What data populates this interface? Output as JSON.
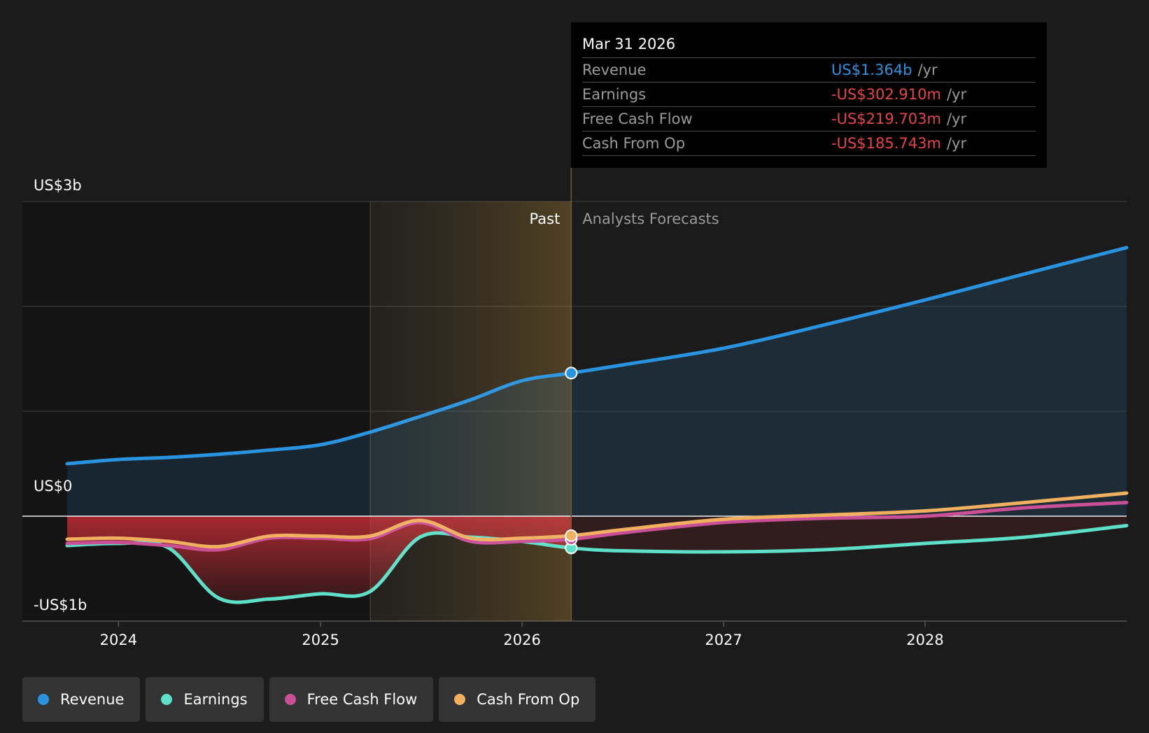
{
  "chart_data": {
    "type": "area",
    "x_label": "",
    "y_label": "",
    "ylim": [
      -1000000000,
      3000000000
    ],
    "xlim": [
      "2023-09-30",
      "2028-12-31"
    ],
    "y_ticks": [
      {
        "value": 3000000000,
        "label": "US$3b"
      },
      {
        "value": 0,
        "label": "US$0"
      },
      {
        "value": -1000000000,
        "label": "-US$1b"
      }
    ],
    "x_ticks": [
      {
        "date": "2024-01-01",
        "label": "2024"
      },
      {
        "date": "2025-01-01",
        "label": "2025"
      },
      {
        "date": "2026-01-01",
        "label": "2026"
      },
      {
        "date": "2027-01-01",
        "label": "2027"
      },
      {
        "date": "2028-01-01",
        "label": "2028"
      }
    ],
    "past_label": "Past",
    "forecast_label": "Analysts Forecasts",
    "divider_date": "2026-03-31",
    "highlight_start_date": "2025-04-01",
    "legend_position": "bottom",
    "series": [
      {
        "name": "Revenue",
        "color": "#2a93e0",
        "points": [
          [
            "2023-09-30",
            500000000
          ],
          [
            "2023-12-31",
            540000000
          ],
          [
            "2024-03-31",
            560000000
          ],
          [
            "2024-06-30",
            590000000
          ],
          [
            "2024-09-30",
            630000000
          ],
          [
            "2024-12-31",
            680000000
          ],
          [
            "2025-03-31",
            800000000
          ],
          [
            "2025-06-30",
            950000000
          ],
          [
            "2025-09-30",
            1110000000
          ],
          [
            "2025-12-31",
            1290000000
          ],
          [
            "2026-03-31",
            1364000000
          ],
          [
            "2026-06-30",
            1440000000
          ],
          [
            "2026-12-31",
            1600000000
          ],
          [
            "2027-06-30",
            1820000000
          ],
          [
            "2027-12-31",
            2060000000
          ],
          [
            "2028-06-30",
            2310000000
          ],
          [
            "2028-12-31",
            2560000000
          ]
        ]
      },
      {
        "name": "Earnings",
        "color": "#5ee0c8",
        "points": [
          [
            "2023-09-30",
            -280000000
          ],
          [
            "2023-12-31",
            -260000000
          ],
          [
            "2024-03-31",
            -300000000
          ],
          [
            "2024-06-30",
            -780000000
          ],
          [
            "2024-09-30",
            -790000000
          ],
          [
            "2024-12-31",
            -740000000
          ],
          [
            "2025-03-31",
            -720000000
          ],
          [
            "2025-06-30",
            -200000000
          ],
          [
            "2025-09-30",
            -200000000
          ],
          [
            "2025-12-31",
            -240000000
          ],
          [
            "2026-03-31",
            -302910000
          ],
          [
            "2026-06-30",
            -330000000
          ],
          [
            "2026-12-31",
            -340000000
          ],
          [
            "2027-06-30",
            -320000000
          ],
          [
            "2027-12-31",
            -260000000
          ],
          [
            "2028-06-30",
            -200000000
          ],
          [
            "2028-12-31",
            -90000000
          ]
        ]
      },
      {
        "name": "Free Cash Flow",
        "color": "#c94f96",
        "points": [
          [
            "2023-09-30",
            -260000000
          ],
          [
            "2023-12-31",
            -250000000
          ],
          [
            "2024-03-31",
            -280000000
          ],
          [
            "2024-06-30",
            -320000000
          ],
          [
            "2024-09-30",
            -210000000
          ],
          [
            "2024-12-31",
            -210000000
          ],
          [
            "2025-03-31",
            -215000000
          ],
          [
            "2025-06-30",
            -60000000
          ],
          [
            "2025-09-30",
            -240000000
          ],
          [
            "2025-12-31",
            -240000000
          ],
          [
            "2026-03-31",
            -219703000
          ],
          [
            "2026-06-30",
            -160000000
          ],
          [
            "2026-12-31",
            -60000000
          ],
          [
            "2027-06-30",
            -20000000
          ],
          [
            "2027-12-31",
            0
          ],
          [
            "2028-06-30",
            80000000
          ],
          [
            "2028-12-31",
            130000000
          ]
        ]
      },
      {
        "name": "Cash From Op",
        "color": "#f0b060",
        "points": [
          [
            "2023-09-30",
            -220000000
          ],
          [
            "2023-12-31",
            -210000000
          ],
          [
            "2024-03-31",
            -240000000
          ],
          [
            "2024-06-30",
            -290000000
          ],
          [
            "2024-09-30",
            -190000000
          ],
          [
            "2024-12-31",
            -190000000
          ],
          [
            "2025-03-31",
            -190000000
          ],
          [
            "2025-06-30",
            -40000000
          ],
          [
            "2025-09-30",
            -210000000
          ],
          [
            "2025-12-31",
            -210000000
          ],
          [
            "2026-03-31",
            -185743000
          ],
          [
            "2026-06-30",
            -130000000
          ],
          [
            "2026-12-31",
            -30000000
          ],
          [
            "2027-06-30",
            10000000
          ],
          [
            "2027-12-31",
            50000000
          ],
          [
            "2028-06-30",
            130000000
          ],
          [
            "2028-12-31",
            220000000
          ]
        ]
      }
    ]
  },
  "tooltip": {
    "date": "Mar 31 2026",
    "rows": [
      {
        "label": "Revenue",
        "value": "US$1.364b",
        "unit": "/yr",
        "tone": "blue"
      },
      {
        "label": "Earnings",
        "value": "-US$302.910m",
        "unit": "/yr",
        "tone": "red"
      },
      {
        "label": "Free Cash Flow",
        "value": "-US$219.703m",
        "unit": "/yr",
        "tone": "red"
      },
      {
        "label": "Cash From Op",
        "value": "-US$185.743m",
        "unit": "/yr",
        "tone": "red"
      }
    ]
  },
  "legend": [
    {
      "label": "Revenue",
      "color": "#2a93e0"
    },
    {
      "label": "Earnings",
      "color": "#5ee0c8"
    },
    {
      "label": "Free Cash Flow",
      "color": "#c94f96"
    },
    {
      "label": "Cash From Op",
      "color": "#f0b060"
    }
  ]
}
